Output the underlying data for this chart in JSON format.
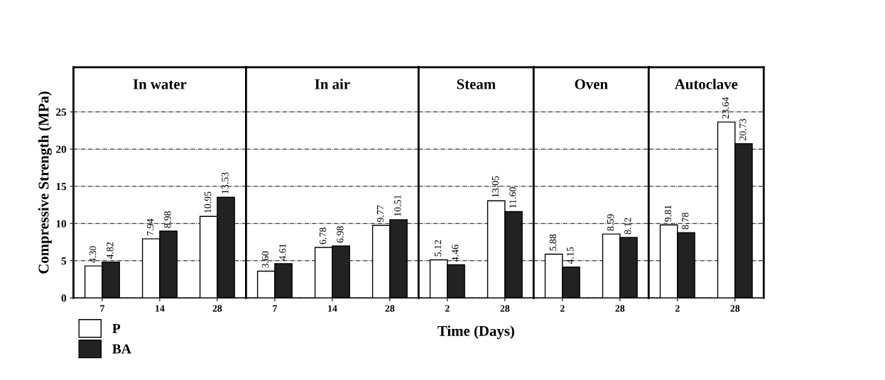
{
  "chart_data": [
    {
      "type": "bar",
      "title": "In water",
      "ylabel": "Compressive Strength (MPa)",
      "categories": [
        "7",
        "14",
        "28"
      ],
      "ylim": [
        0,
        31
      ],
      "yticks": [
        0,
        5,
        10,
        15,
        20,
        25
      ],
      "grid": "y",
      "legend": "bottom left",
      "series": [
        {
          "name": "P",
          "color": "#ffffff",
          "values": [
            4.3,
            7.94,
            10.95
          ],
          "value_labels": [
            "4.30",
            "7.94",
            "10.95"
          ]
        },
        {
          "name": "BA",
          "color": "#222222",
          "values": [
            4.82,
            8.98,
            13.53
          ],
          "value_labels": [
            "4.82",
            "8.98",
            "13.53"
          ]
        }
      ]
    },
    {
      "type": "bar",
      "title": "In air",
      "categories": [
        "7",
        "14",
        "28"
      ],
      "ylim": [
        0,
        31
      ],
      "yticks": [
        0,
        5,
        10,
        15,
        20,
        25
      ],
      "grid": "y",
      "tick_labels": "x",
      "series": [
        {
          "color": "#ffffff",
          "values": [
            3.6,
            6.78,
            9.77
          ],
          "value_labels": [
            "3.60",
            "6.78",
            "9.77"
          ]
        },
        {
          "color": "#222222",
          "values": [
            4.61,
            6.98,
            10.51
          ],
          "value_labels": [
            "4.61",
            "6.98",
            "10.51"
          ]
        }
      ]
    },
    {
      "type": "bar",
      "title": "Steam",
      "xlabel": "Time (Days)",
      "categories": [
        "2",
        "28"
      ],
      "ylim": [
        0,
        31
      ],
      "yticks": [
        0,
        5,
        10,
        15,
        20,
        25
      ],
      "grid": "y",
      "tick_labels": "x",
      "series": [
        {
          "color": "#ffffff",
          "values": [
            5.12,
            13.05
          ],
          "value_labels": [
            "5.12",
            "13.05"
          ]
        },
        {
          "color": "#222222",
          "values": [
            4.46,
            11.6
          ],
          "value_labels": [
            "4.46",
            "11.60"
          ]
        }
      ]
    },
    {
      "type": "bar",
      "title": "Oven",
      "categories": [
        "2",
        "28"
      ],
      "ylim": [
        0,
        31
      ],
      "yticks": [
        0,
        5,
        10,
        15,
        20,
        25
      ],
      "grid": "y",
      "tick_labels": "x",
      "series": [
        {
          "color": "#ffffff",
          "values": [
            5.88,
            8.59
          ],
          "value_labels": [
            "5.88",
            "8.59"
          ]
        },
        {
          "color": "#222222",
          "values": [
            4.15,
            8.12
          ],
          "value_labels": [
            "4.15",
            "8.12"
          ]
        }
      ]
    },
    {
      "type": "bar",
      "title": "Autoclave",
      "categories": [
        "2",
        "28"
      ],
      "ylim": [
        0,
        31
      ],
      "yticks": [
        0,
        5,
        10,
        15,
        20,
        25
      ],
      "grid": "y",
      "tick_labels": "x",
      "series": [
        {
          "color": "#ffffff",
          "values": [
            9.81,
            23.64
          ],
          "value_labels": [
            "9.81",
            "23.64"
          ]
        },
        {
          "color": "#222222",
          "values": [
            8.78,
            20.73
          ],
          "value_labels": [
            "8.78",
            "20.73"
          ]
        }
      ]
    }
  ]
}
